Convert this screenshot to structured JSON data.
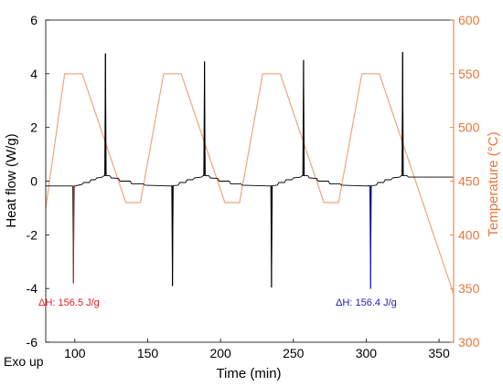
{
  "chart_data": {
    "type": "line",
    "xlabel": "Time (min)",
    "ylabel_left": "Heat flow (W/g)",
    "ylabel_right": "Temperature (°C)",
    "xlim": [
      80,
      360
    ],
    "ylim_left": [
      -6,
      6
    ],
    "ylim_right": [
      300,
      600
    ],
    "x_ticks": [
      100,
      150,
      200,
      250,
      300,
      350
    ],
    "y_ticks_left": [
      -6,
      -4,
      -2,
      0,
      2,
      4,
      6
    ],
    "y_ticks_right": [
      300,
      350,
      400,
      450,
      500,
      550,
      600
    ],
    "grid": false,
    "legend": "none",
    "corner_label": "Exo up",
    "colors": {
      "heat_flow": "#000000",
      "temperature": "#f0a47e",
      "right_axis": "#e8753a",
      "annotation_red": "#e02020",
      "annotation_blue": "#2020c0"
    },
    "series": [
      {
        "axis": "left",
        "color": "#000000",
        "baseline": [
          [
            80,
            -0.18
          ],
          [
            90,
            -0.18
          ],
          [
            94,
            -0.18
          ],
          [
            100,
            -0.18
          ],
          [
            105,
            -0.12
          ],
          [
            106,
            -0.05
          ],
          [
            110,
            -0.05
          ],
          [
            111,
            0.05
          ],
          [
            114,
            0.05
          ],
          [
            115,
            0.12
          ],
          [
            119,
            0.15
          ],
          [
            120,
            0.2
          ],
          [
            124,
            0.2
          ],
          [
            125,
            0.12
          ],
          [
            130,
            0.1
          ],
          [
            131,
            0.0
          ],
          [
            138,
            0.0
          ],
          [
            139,
            -0.1
          ],
          [
            147,
            -0.1
          ],
          [
            148,
            -0.15
          ],
          [
            165,
            -0.18
          ],
          [
            171,
            -0.15
          ],
          [
            172,
            -0.05
          ],
          [
            176,
            -0.05
          ],
          [
            177,
            0.05
          ],
          [
            181,
            0.05
          ],
          [
            182,
            0.12
          ],
          [
            187,
            0.15
          ],
          [
            188,
            0.2
          ],
          [
            192,
            0.2
          ],
          [
            193,
            0.12
          ],
          [
            198,
            0.1
          ],
          [
            199,
            0.0
          ],
          [
            206,
            0.0
          ],
          [
            207,
            -0.1
          ],
          [
            214,
            -0.1
          ],
          [
            215,
            -0.15
          ],
          [
            233,
            -0.18
          ],
          [
            239,
            -0.15
          ],
          [
            240,
            -0.05
          ],
          [
            244,
            -0.05
          ],
          [
            245,
            0.05
          ],
          [
            249,
            0.05
          ],
          [
            250,
            0.12
          ],
          [
            255,
            0.15
          ],
          [
            256,
            0.2
          ],
          [
            260,
            0.2
          ],
          [
            261,
            0.12
          ],
          [
            266,
            0.1
          ],
          [
            267,
            0.0
          ],
          [
            274,
            0.0
          ],
          [
            275,
            -0.1
          ],
          [
            282,
            -0.1
          ],
          [
            283,
            -0.15
          ],
          [
            300,
            -0.18
          ],
          [
            307,
            -0.15
          ],
          [
            308,
            -0.05
          ],
          [
            312,
            -0.05
          ],
          [
            313,
            0.05
          ],
          [
            317,
            0.05
          ],
          [
            318,
            0.12
          ],
          [
            323,
            0.15
          ],
          [
            324,
            0.2
          ],
          [
            328,
            0.2
          ],
          [
            329,
            0.15
          ],
          [
            360,
            0.15
          ]
        ],
        "peaks": [
          {
            "x": 99,
            "y": -3.8
          },
          {
            "x": 121,
            "y": 4.75
          },
          {
            "x": 167,
            "y": -3.9
          },
          {
            "x": 189,
            "y": 4.45
          },
          {
            "x": 235,
            "y": -3.95
          },
          {
            "x": 257,
            "y": 4.5
          },
          {
            "x": 303,
            "y": -4.0
          },
          {
            "x": 325,
            "y": 4.8
          }
        ]
      },
      {
        "axis": "right",
        "color": "#f0a47e",
        "points": [
          [
            80,
            425
          ],
          [
            93,
            550
          ],
          [
            105,
            550
          ],
          [
            135,
            430
          ],
          [
            145,
            430
          ],
          [
            161,
            550
          ],
          [
            173,
            550
          ],
          [
            203,
            430
          ],
          [
            213,
            430
          ],
          [
            229,
            550
          ],
          [
            241,
            550
          ],
          [
            271,
            430
          ],
          [
            281,
            430
          ],
          [
            297,
            550
          ],
          [
            309,
            550
          ],
          [
            360,
            345
          ]
        ]
      }
    ],
    "annotations": [
      {
        "text": "ΔH: 156.5 J/g",
        "x": 96,
        "y": -4.5,
        "color": "#e02020",
        "highlight_peak_x": 99
      },
      {
        "text": "ΔH: 156.4 J/g",
        "x": 300,
        "y": -4.5,
        "color": "#2020c0",
        "highlight_peak_x": 303
      }
    ]
  }
}
